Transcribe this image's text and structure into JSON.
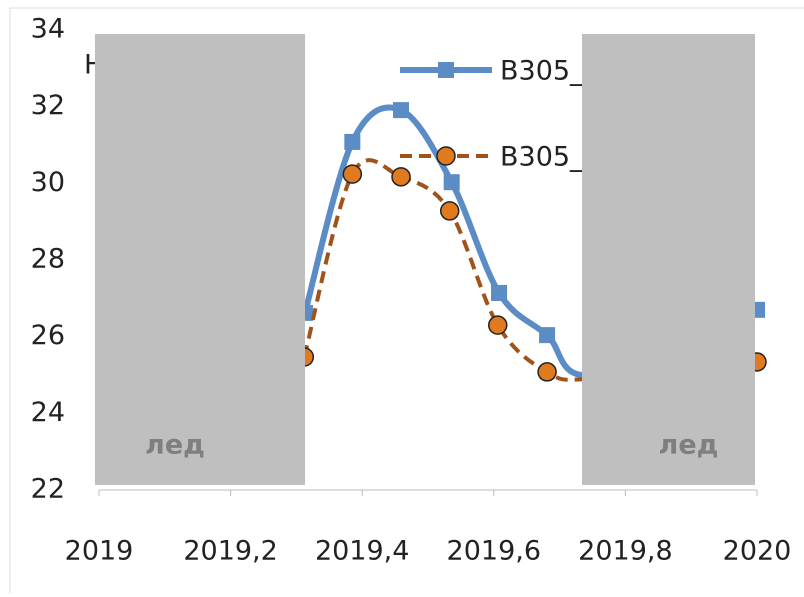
{
  "chart_data": {
    "type": "line",
    "title": "Н",
    "series": [
      {
        "name": "B305_",
        "color": "#5b8cc5",
        "marker": "square",
        "dashed": false,
        "x": [
          2019.313,
          2019.385,
          2019.459,
          2019.536,
          2019.608,
          2019.681,
          2019.75,
          2020.0
        ],
        "values": [
          26.62,
          31.08,
          31.91,
          30.03,
          27.14,
          26.04,
          25.0,
          26.7
        ]
      },
      {
        "name": "B305_",
        "color": "#e07a1f",
        "line_color": "#a0521a",
        "marker": "circle",
        "dashed": true,
        "x": [
          2019.312,
          2019.385,
          2019.459,
          2019.533,
          2019.606,
          2019.681,
          2019.75,
          2020.0
        ],
        "values": [
          25.47,
          30.24,
          30.17,
          29.28,
          26.3,
          25.08,
          24.9,
          25.34
        ]
      }
    ],
    "xlim": [
      2019,
      2020
    ],
    "xticks": [
      {
        "value": 2019,
        "label": "2019"
      },
      {
        "value": 2019.2,
        "label": "2019,2"
      },
      {
        "value": 2019.4,
        "label": "2019,4"
      },
      {
        "value": 2019.6,
        "label": "2019,6"
      },
      {
        "value": 2019.8,
        "label": "2019,8"
      },
      {
        "value": 2020,
        "label": "2020"
      }
    ],
    "ylim": [
      22,
      34
    ],
    "yticks": [
      22,
      24,
      26,
      28,
      30,
      32,
      34
    ],
    "annotations": [
      "лед",
      "лед"
    ]
  }
}
